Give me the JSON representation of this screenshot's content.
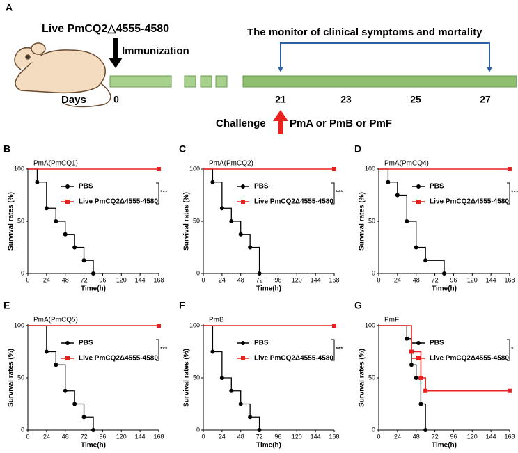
{
  "diagram": {
    "panel": "A",
    "strain": "Live PmCQ2△4555-4580",
    "immunization": "Immunization",
    "days_label": "Days",
    "days": [
      "0",
      "21",
      "23",
      "25",
      "27"
    ],
    "monitor": "The monitor of clinical symptoms and mortality",
    "challenge": "Challenge",
    "pathogens": "PmA or PmB or PmF"
  },
  "chart_data": [
    {
      "type": "step",
      "panel": "B",
      "title": "PmA(PmCQ1)",
      "xlabel": "Time(h)",
      "ylabel": "Survival rates (%)",
      "xlim": [
        0,
        168
      ],
      "ylim": [
        0,
        100
      ],
      "xticks": [
        0,
        24,
        48,
        72,
        96,
        120,
        144,
        168
      ],
      "yticks": [
        0,
        50,
        100
      ],
      "significance": "***",
      "series": [
        {
          "name": "PBS",
          "color": "#000000",
          "x": [
            0,
            12,
            24,
            36,
            48,
            60,
            72,
            84
          ],
          "values": [
            100,
            87.5,
            62.5,
            50,
            37.5,
            25,
            12.5,
            0
          ]
        },
        {
          "name": "Live PmCQ2Δ4555-4580",
          "color": "#e8201e",
          "x": [
            0,
            168
          ],
          "values": [
            100,
            100
          ]
        }
      ]
    },
    {
      "type": "step",
      "panel": "C",
      "title": "PmA(PmCQ2)",
      "xlabel": "Time(h)",
      "ylabel": "Survival rates (%)",
      "xlim": [
        0,
        168
      ],
      "ylim": [
        0,
        100
      ],
      "xticks": [
        0,
        24,
        48,
        72,
        96,
        120,
        144,
        168
      ],
      "yticks": [
        0,
        50,
        100
      ],
      "significance": "***",
      "series": [
        {
          "name": "PBS",
          "color": "#000000",
          "x": [
            0,
            12,
            24,
            36,
            48,
            60,
            72
          ],
          "values": [
            100,
            87.5,
            62.5,
            50,
            37.5,
            25,
            0
          ]
        },
        {
          "name": "Live PmCQ2Δ4555-4580",
          "color": "#e8201e",
          "x": [
            0,
            168
          ],
          "values": [
            100,
            100
          ]
        }
      ]
    },
    {
      "type": "step",
      "panel": "D",
      "title": "PmA(PmCQ4)",
      "xlabel": "Time(h)",
      "ylabel": "Survival rates (%)",
      "xlim": [
        0,
        168
      ],
      "ylim": [
        0,
        100
      ],
      "xticks": [
        0,
        24,
        48,
        72,
        96,
        120,
        144,
        168
      ],
      "yticks": [
        0,
        50,
        100
      ],
      "significance": "***",
      "series": [
        {
          "name": "PBS",
          "color": "#000000",
          "x": [
            0,
            12,
            24,
            36,
            48,
            60,
            84
          ],
          "values": [
            100,
            87.5,
            75,
            50,
            25,
            12.5,
            0
          ]
        },
        {
          "name": "Live PmCQ2Δ4555-4580",
          "color": "#e8201e",
          "x": [
            0,
            168
          ],
          "values": [
            100,
            100
          ]
        }
      ]
    },
    {
      "type": "step",
      "panel": "E",
      "title": "PmA(PmCQ5)",
      "xlabel": "Time(h)",
      "ylabel": "Survival rates (%)",
      "xlim": [
        0,
        168
      ],
      "ylim": [
        0,
        100
      ],
      "xticks": [
        0,
        24,
        48,
        72,
        96,
        120,
        144,
        168
      ],
      "yticks": [
        0,
        50,
        100
      ],
      "significance": "***",
      "series": [
        {
          "name": "PBS",
          "color": "#000000",
          "x": [
            0,
            24,
            36,
            48,
            60,
            72,
            84
          ],
          "values": [
            100,
            75,
            62.5,
            37.5,
            25,
            12.5,
            0
          ]
        },
        {
          "name": "Live PmCQ2Δ4555-4580",
          "color": "#e8201e",
          "x": [
            0,
            168
          ],
          "values": [
            100,
            100
          ]
        }
      ]
    },
    {
      "type": "step",
      "panel": "F",
      "title": "PmB",
      "xlabel": "Time(h)",
      "ylabel": "Survival rates (%)",
      "xlim": [
        0,
        168
      ],
      "ylim": [
        0,
        100
      ],
      "xticks": [
        0,
        24,
        48,
        72,
        96,
        120,
        144,
        168
      ],
      "yticks": [
        0,
        50,
        100
      ],
      "significance": "***",
      "series": [
        {
          "name": "PBS",
          "color": "#000000",
          "x": [
            0,
            12,
            24,
            36,
            48,
            60,
            72
          ],
          "values": [
            100,
            75,
            50,
            37.5,
            25,
            12.5,
            0
          ]
        },
        {
          "name": "Live PmCQ2Δ4555-4580",
          "color": "#e8201e",
          "x": [
            0,
            168
          ],
          "values": [
            100,
            100
          ]
        }
      ]
    },
    {
      "type": "step",
      "panel": "G",
      "title": "PmF",
      "xlabel": "Time(h)",
      "ylabel": "Survival rates (%)",
      "xlim": [
        0,
        168
      ],
      "ylim": [
        0,
        100
      ],
      "xticks": [
        0,
        24,
        48,
        72,
        96,
        120,
        144,
        168
      ],
      "yticks": [
        0,
        50,
        100
      ],
      "significance": "*",
      "series": [
        {
          "name": "PBS",
          "color": "#000000",
          "x": [
            0,
            36,
            42,
            48,
            54,
            60
          ],
          "values": [
            100,
            87.5,
            62.5,
            50,
            25,
            0
          ]
        },
        {
          "name": "Live PmCQ2Δ4555-4580",
          "color": "#e8201e",
          "x": [
            0,
            42,
            54,
            60,
            168
          ],
          "values": [
            100,
            75,
            50,
            37.5,
            37.5
          ]
        }
      ]
    }
  ]
}
